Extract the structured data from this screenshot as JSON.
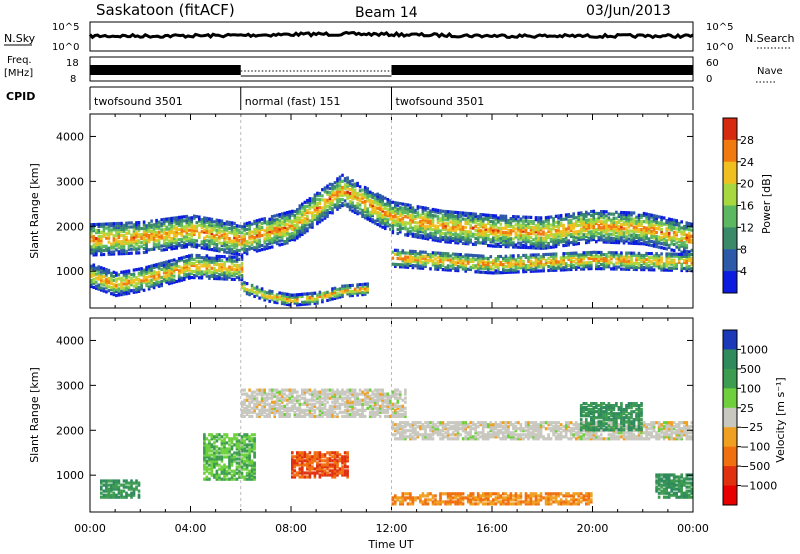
{
  "header": {
    "station": "Saskatoon (fitACF)",
    "beam": "Beam 14",
    "date": "03/Jun/2013"
  },
  "top_panels": {
    "nsky": {
      "left_label": "N.Sky",
      "right_label": "N.Search",
      "left_ticks": [
        "10^5",
        "10^0"
      ],
      "right_ticks": [
        "10^5",
        "10^0"
      ]
    },
    "freq": {
      "left_label_1": "Freq.",
      "left_label_2": "[MHz]",
      "right_label": "Nave",
      "left_ticks": [
        "18",
        "8"
      ],
      "right_ticks": [
        "60",
        "0"
      ]
    },
    "cpid": {
      "label": "CPID",
      "segments": [
        {
          "name": "twofsound 3501",
          "start_h": 0,
          "end_h": 6
        },
        {
          "name": "normal (fast) 151",
          "start_h": 6,
          "end_h": 12
        },
        {
          "name": "twofsound 3501",
          "start_h": 12,
          "end_h": 24
        }
      ]
    }
  },
  "chart_data": [
    {
      "type": "heatmap",
      "title": "Power",
      "ylabel": "Slant Range [km]",
      "ylim": [
        180,
        4500
      ],
      "yticks": [
        1000,
        2000,
        3000,
        4000
      ],
      "colorbar": {
        "label": "Power [dB]",
        "range": [
          0,
          32
        ],
        "ticks": [
          "4",
          "8",
          "12",
          "16",
          "20",
          "24",
          "28"
        ],
        "colors": [
          "#0b1be0",
          "#2d5aa8",
          "#3a8a6a",
          "#5cb860",
          "#a8d840",
          "#f0c020",
          "#f07a10",
          "#d62a10"
        ]
      },
      "echo_bands": [
        {
          "x": [
            0,
            2,
            4,
            6,
            8,
            10,
            12,
            14,
            16,
            18,
            20,
            22,
            24
          ],
          "y": [
            1700,
            1750,
            1900,
            1700,
            2000,
            2800,
            2200,
            2000,
            1900,
            1850,
            2000,
            1950,
            1700
          ],
          "half_width_km": 350
        },
        {
          "x": [
            0,
            1,
            2,
            4,
            6
          ],
          "y": [
            900,
            700,
            800,
            1100,
            1050
          ],
          "half_width_km": 250
        },
        {
          "x": [
            6,
            7,
            8,
            9,
            10,
            11
          ],
          "y": [
            650,
            450,
            350,
            400,
            550,
            600
          ],
          "half_width_km": 120
        },
        {
          "x": [
            12,
            16,
            20,
            24
          ],
          "y": [
            1300,
            1150,
            1250,
            1200
          ],
          "half_width_km": 200
        }
      ]
    },
    {
      "type": "heatmap",
      "title": "Velocity",
      "ylabel": "Slant Range [km]",
      "xlabel": "Time UT",
      "xticks": [
        "00:00",
        "04:00",
        "08:00",
        "12:00",
        "16:00",
        "20:00",
        "00:00"
      ],
      "ylim": [
        180,
        4500
      ],
      "yticks": [
        1000,
        2000,
        3000,
        4000
      ],
      "colorbar": {
        "label": "Velocity [m s⁻¹]",
        "ticks": [
          "1000",
          "500",
          "100",
          "25",
          "−25",
          "−100",
          "−500",
          "−1000"
        ],
        "colors": [
          "#1a38b8",
          "#2f8a5c",
          "#3c9c50",
          "#6ed03c",
          "#c8c8c0",
          "#f0a020",
          "#f07010",
          "#e03010",
          "#e80000"
        ]
      },
      "echo_patches": [
        {
          "x0": 0.4,
          "x1": 2.0,
          "y0": 500,
          "y1": 900,
          "v": 500
        },
        {
          "x0": 4.5,
          "x1": 6.5,
          "y0": 900,
          "y1": 1900,
          "v": 100
        },
        {
          "x0": 8.0,
          "x1": 10.2,
          "y0": 950,
          "y1": 1500,
          "v": -500
        },
        {
          "x0": 6.0,
          "x1": 12.5,
          "y0": 2300,
          "y1": 2900,
          "v": 0
        },
        {
          "x0": 12.0,
          "x1": 24.0,
          "y0": 1800,
          "y1": 2200,
          "v": 0
        },
        {
          "x0": 19.5,
          "x1": 22.0,
          "y0": 2000,
          "y1": 2600,
          "v": 500
        },
        {
          "x0": 22.5,
          "x1": 24.0,
          "y0": 500,
          "y1": 1000,
          "v": 500
        },
        {
          "x0": 12.0,
          "x1": 20.0,
          "y0": 350,
          "y1": 600,
          "v": -100
        }
      ]
    }
  ]
}
